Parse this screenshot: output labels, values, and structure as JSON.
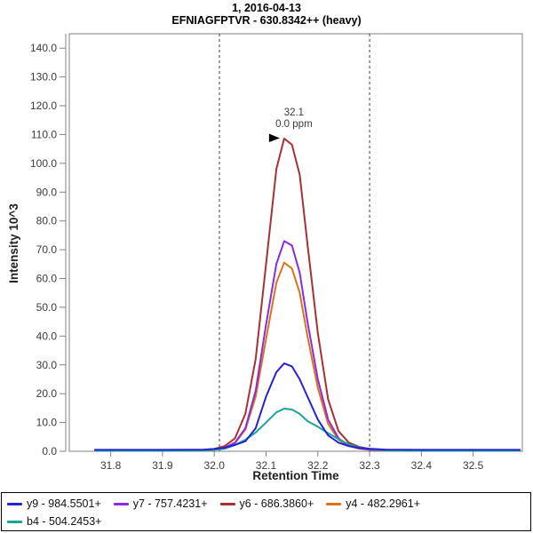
{
  "window": {
    "title_line1": "1, 2016-04-13",
    "title_line2": "EFNIAGFPTVR - 630.8342++ (heavy)"
  },
  "chart_data": {
    "type": "line",
    "title": "1, 2016-04-13",
    "subtitle": "EFNIAGFPTVR - 630.8342++ (heavy)",
    "xlabel": "Retention Time",
    "ylabel": "Intensity 10^3",
    "xlim": [
      31.72,
      32.595
    ],
    "ylim": [
      0,
      145
    ],
    "xticks": [
      31.8,
      31.9,
      32.0,
      32.1,
      32.2,
      32.3,
      32.4,
      32.5
    ],
    "yticks": [
      0,
      10,
      20,
      30,
      40,
      50,
      60,
      70,
      80,
      90,
      100,
      110,
      120,
      130,
      140
    ],
    "grid": false,
    "legend_position": "bottom",
    "axis_color": "#828282",
    "tick_label_color": "#3a3a3a",
    "x": [
      31.77,
      31.9,
      31.98,
      32.0,
      32.02,
      32.04,
      32.06,
      32.08,
      32.1,
      32.12,
      32.135,
      32.15,
      32.165,
      32.18,
      32.2,
      32.22,
      32.24,
      32.26,
      32.28,
      32.3,
      32.33,
      32.4,
      32.59
    ],
    "series": [
      {
        "id": "y9",
        "name": "y9 - 984.5501+",
        "color": "#2323D6",
        "values": [
          0.5,
          0.5,
          0.6,
          0.8,
          1.2,
          2.2,
          3.5,
          8,
          19,
          27.5,
          30.5,
          29.5,
          25,
          19,
          11,
          5.5,
          3,
          1.8,
          1.2,
          0.9,
          0.6,
          0.5,
          0.5
        ]
      },
      {
        "id": "y7",
        "name": "y7 - 757.4231+",
        "color": "#8A2BE2",
        "values": [
          0.3,
          0.3,
          0.4,
          0.6,
          1.2,
          3,
          8,
          21,
          44,
          65,
          73,
          71.5,
          62,
          45,
          25,
          11,
          4.5,
          2,
          1,
          0.6,
          0.3,
          0.3,
          0.3
        ]
      },
      {
        "id": "y6",
        "name": "y6 - 686.3860+",
        "color": "#A93030",
        "values": [
          0.4,
          0.4,
          0.5,
          0.8,
          1.8,
          4.5,
          13,
          32,
          65,
          98,
          108.6,
          106.5,
          96,
          72,
          41,
          18,
          7,
          3,
          1.5,
          0.8,
          0.4,
          0.4,
          0.4
        ]
      },
      {
        "id": "y4",
        "name": "y4 - 482.2961+",
        "color": "#DD7318",
        "values": [
          0.3,
          0.3,
          0.4,
          0.6,
          1.1,
          2.8,
          7.5,
          19,
          39,
          58.5,
          65.5,
          63.5,
          55,
          40,
          22,
          9.5,
          4,
          1.8,
          0.9,
          0.5,
          0.3,
          0.3,
          0.3
        ]
      },
      {
        "id": "b4",
        "name": "b4 - 504.2453+",
        "color": "#1AA59B",
        "values": [
          0.2,
          0.2,
          0.3,
          0.5,
          0.9,
          2.2,
          4,
          6.5,
          10,
          13.5,
          14.8,
          14.5,
          13,
          10.5,
          8.5,
          6.3,
          4.2,
          2.4,
          1.3,
          0.8,
          0.3,
          0.2,
          0.2
        ]
      }
    ],
    "draw_order": [
      "y4",
      "y7",
      "y6",
      "b4",
      "y9"
    ],
    "peak_boundaries": {
      "start": 32.01,
      "end": 32.3,
      "style": "dashed",
      "color": "#3c3c3c"
    },
    "annotation": {
      "line1": "32.1",
      "line2": "0.0 ppm",
      "x": 32.135,
      "y": 108.6,
      "color": "#A93030",
      "arrow": "black-right-triangle"
    }
  },
  "legend": {
    "rows": [
      [
        "y9",
        "y7",
        "y6",
        "y4"
      ],
      [
        "b4"
      ]
    ]
  }
}
